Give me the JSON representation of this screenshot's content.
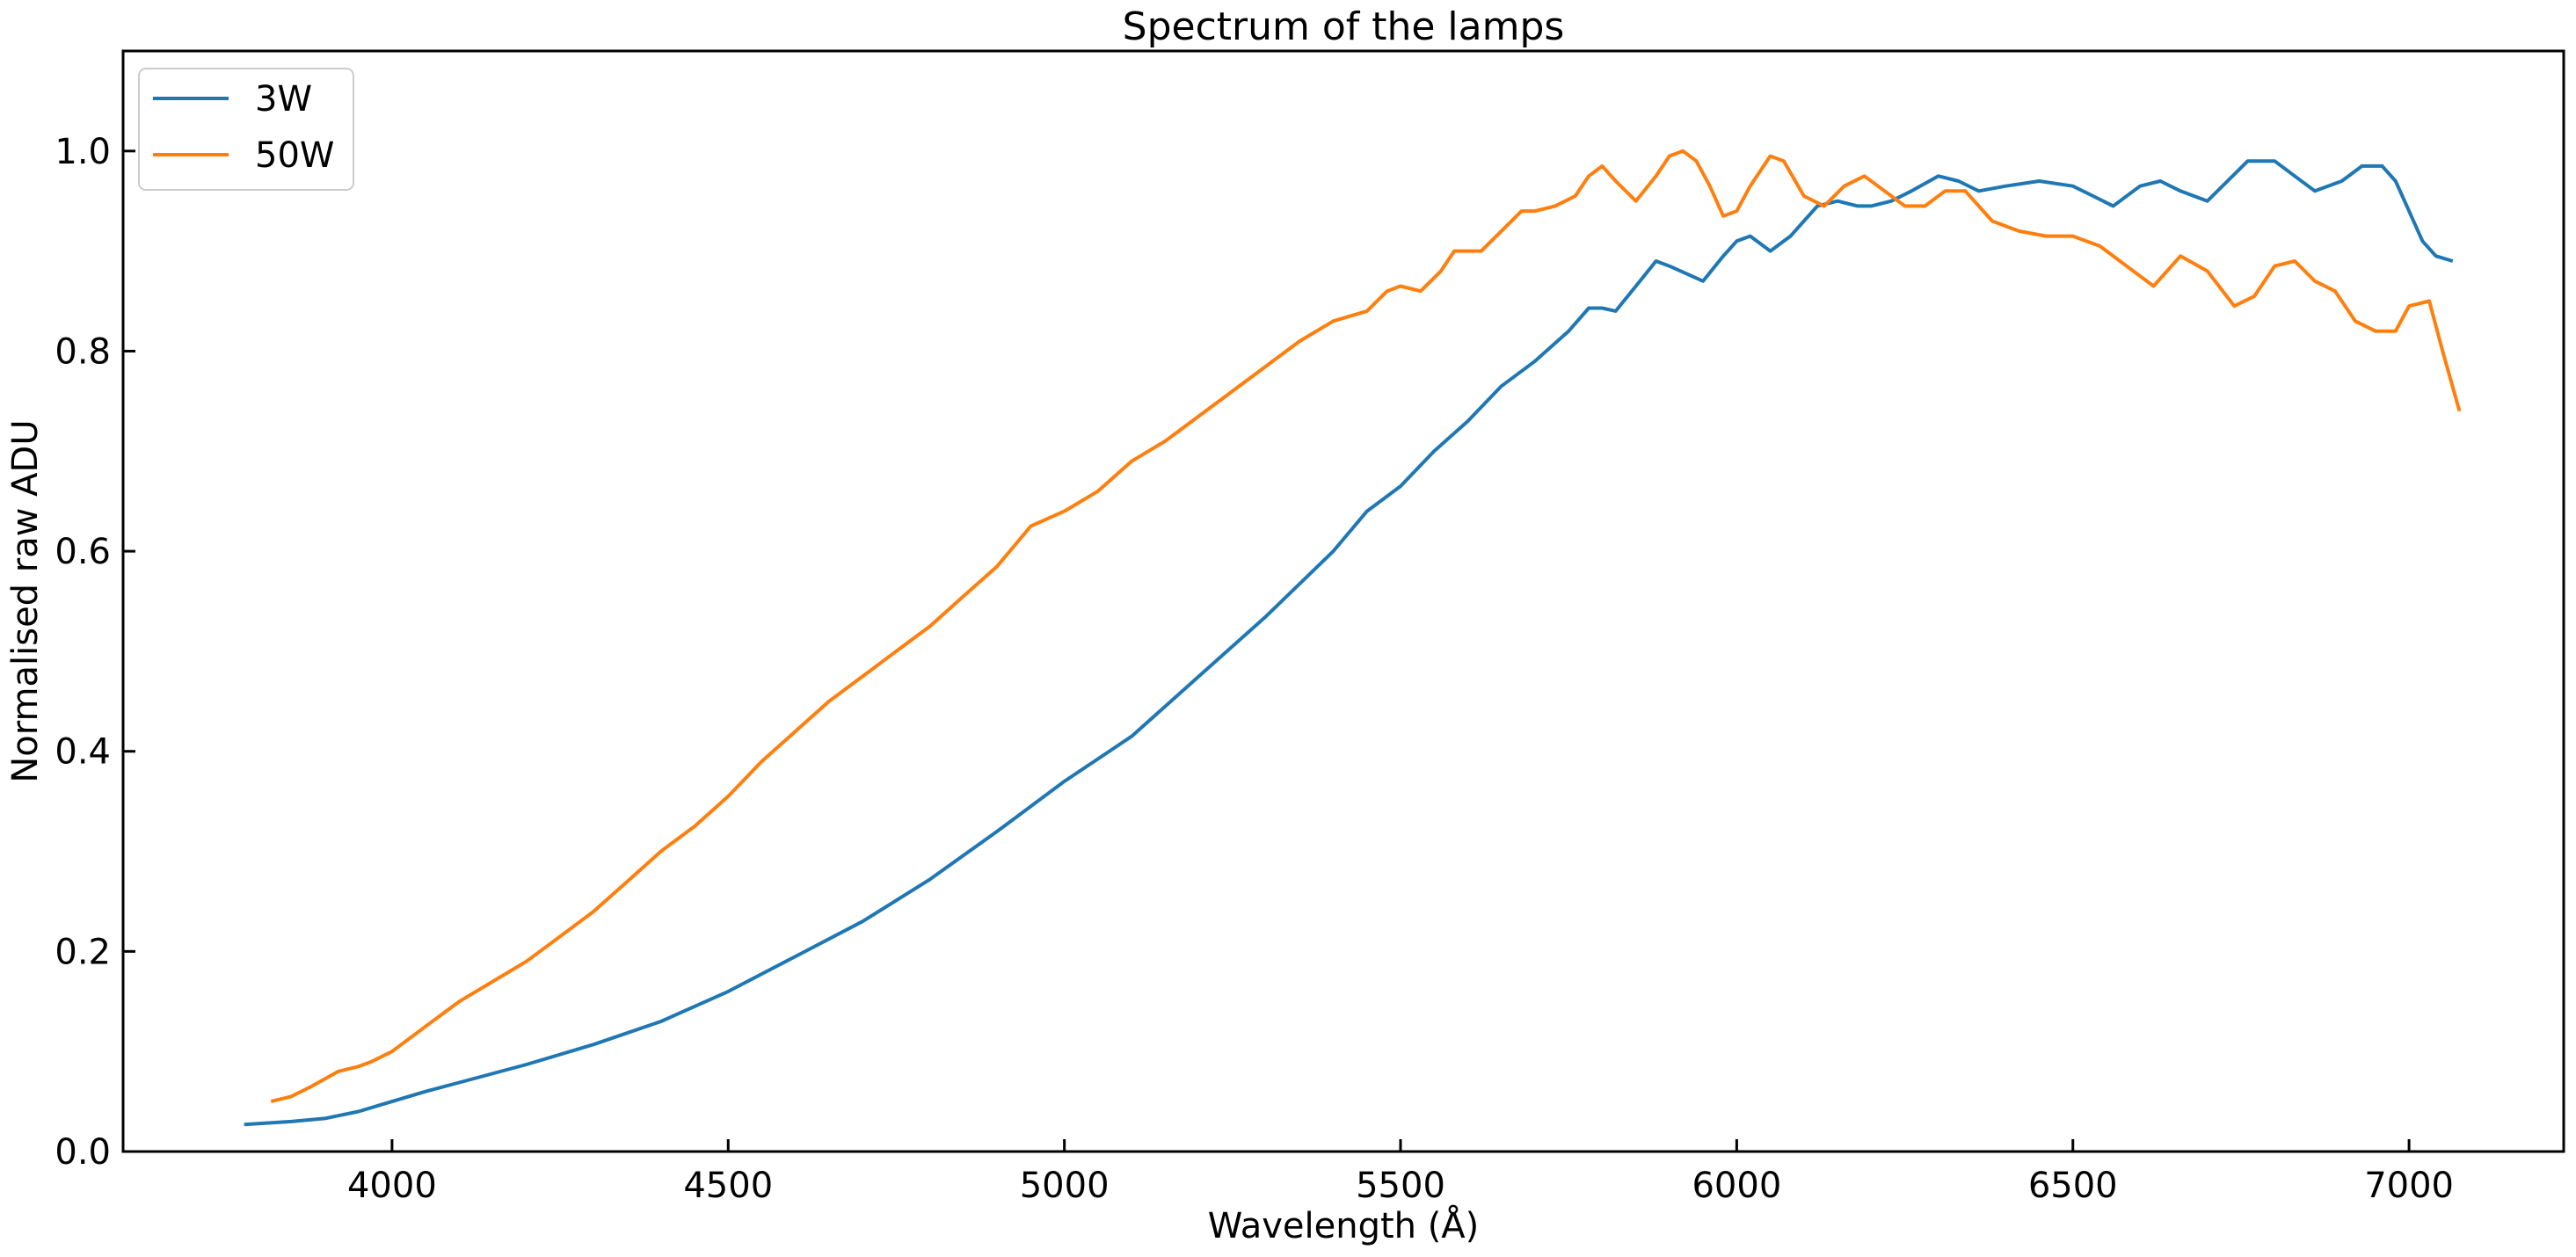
{
  "chart_data": {
    "type": "line",
    "title": "Spectrum of the lamps",
    "xlabel": "Wavelength (Å)",
    "ylabel": "Normalised raw ADU",
    "xlim": [
      3600,
      7230
    ],
    "ylim": [
      0.0,
      1.1
    ],
    "xticks": [
      4000,
      4500,
      5000,
      5500,
      6000,
      6500,
      7000
    ],
    "xtick_labels": [
      "4000",
      "4500",
      "5000",
      "5500",
      "6000",
      "6500",
      "7000"
    ],
    "yticks": [
      0.0,
      0.2,
      0.4,
      0.6,
      0.8,
      1.0
    ],
    "ytick_labels": [
      "0.0",
      "0.2",
      "0.4",
      "0.6",
      "0.8",
      "1.0"
    ],
    "grid": false,
    "legend_position": "top-left",
    "series": [
      {
        "name": "3W",
        "color": "#1f77b4",
        "x": [
          3780,
          3850,
          3900,
          3950,
          4000,
          4050,
          4100,
          4200,
          4300,
          4400,
          4500,
          4600,
          4700,
          4800,
          4900,
          5000,
          5100,
          5200,
          5300,
          5400,
          5450,
          5500,
          5550,
          5600,
          5650,
          5700,
          5750,
          5780,
          5800,
          5820,
          5850,
          5880,
          5900,
          5950,
          5980,
          6000,
          6020,
          6050,
          6080,
          6100,
          6120,
          6150,
          6180,
          6200,
          6230,
          6260,
          6300,
          6330,
          6360,
          6400,
          6450,
          6500,
          6530,
          6560,
          6600,
          6630,
          6660,
          6700,
          6730,
          6760,
          6800,
          6830,
          6860,
          6900,
          6930,
          6960,
          6980,
          7000,
          7020,
          7040,
          7065
        ],
        "y": [
          0.027,
          0.03,
          0.033,
          0.04,
          0.05,
          0.06,
          0.069,
          0.087,
          0.107,
          0.13,
          0.16,
          0.195,
          0.23,
          0.272,
          0.32,
          0.37,
          0.415,
          0.475,
          0.535,
          0.6,
          0.64,
          0.665,
          0.7,
          0.73,
          0.765,
          0.79,
          0.82,
          0.843,
          0.843,
          0.84,
          0.865,
          0.89,
          0.885,
          0.87,
          0.895,
          0.91,
          0.915,
          0.9,
          0.915,
          0.93,
          0.945,
          0.95,
          0.945,
          0.945,
          0.95,
          0.96,
          0.975,
          0.97,
          0.96,
          0.965,
          0.97,
          0.965,
          0.955,
          0.945,
          0.965,
          0.97,
          0.96,
          0.95,
          0.97,
          0.99,
          0.99,
          0.975,
          0.96,
          0.97,
          0.985,
          0.985,
          0.97,
          0.94,
          0.91,
          0.895,
          0.89
        ]
      },
      {
        "name": "50W",
        "color": "#ff7f0e",
        "x": [
          3820,
          3850,
          3880,
          3920,
          3950,
          3970,
          4000,
          4050,
          4100,
          4150,
          4200,
          4250,
          4300,
          4350,
          4400,
          4450,
          4500,
          4550,
          4600,
          4650,
          4700,
          4750,
          4800,
          4850,
          4900,
          4950,
          5000,
          5050,
          5100,
          5150,
          5200,
          5250,
          5300,
          5350,
          5400,
          5450,
          5480,
          5500,
          5530,
          5560,
          5580,
          5600,
          5620,
          5650,
          5680,
          5700,
          5730,
          5760,
          5780,
          5800,
          5820,
          5850,
          5880,
          5900,
          5920,
          5940,
          5960,
          5980,
          6000,
          6020,
          6050,
          6070,
          6100,
          6130,
          6160,
          6190,
          6220,
          6250,
          6280,
          6310,
          6340,
          6380,
          6420,
          6460,
          6500,
          6540,
          6580,
          6620,
          6660,
          6700,
          6740,
          6770,
          6800,
          6830,
          6860,
          6890,
          6920,
          6950,
          6980,
          7000,
          7030,
          7050,
          7075
        ],
        "y": [
          0.05,
          0.055,
          0.065,
          0.08,
          0.085,
          0.09,
          0.1,
          0.125,
          0.15,
          0.17,
          0.19,
          0.215,
          0.24,
          0.27,
          0.3,
          0.325,
          0.355,
          0.39,
          0.42,
          0.45,
          0.475,
          0.5,
          0.525,
          0.555,
          0.585,
          0.625,
          0.64,
          0.66,
          0.69,
          0.71,
          0.735,
          0.76,
          0.785,
          0.81,
          0.83,
          0.84,
          0.86,
          0.865,
          0.86,
          0.88,
          0.9,
          0.9,
          0.9,
          0.92,
          0.94,
          0.94,
          0.945,
          0.955,
          0.975,
          0.985,
          0.97,
          0.95,
          0.975,
          0.995,
          1.0,
          0.99,
          0.965,
          0.935,
          0.94,
          0.965,
          0.995,
          0.99,
          0.955,
          0.945,
          0.965,
          0.975,
          0.96,
          0.945,
          0.945,
          0.96,
          0.96,
          0.93,
          0.92,
          0.915,
          0.915,
          0.905,
          0.885,
          0.865,
          0.895,
          0.88,
          0.845,
          0.855,
          0.885,
          0.89,
          0.87,
          0.86,
          0.83,
          0.82,
          0.82,
          0.845,
          0.85,
          0.8,
          0.74
        ]
      }
    ]
  }
}
